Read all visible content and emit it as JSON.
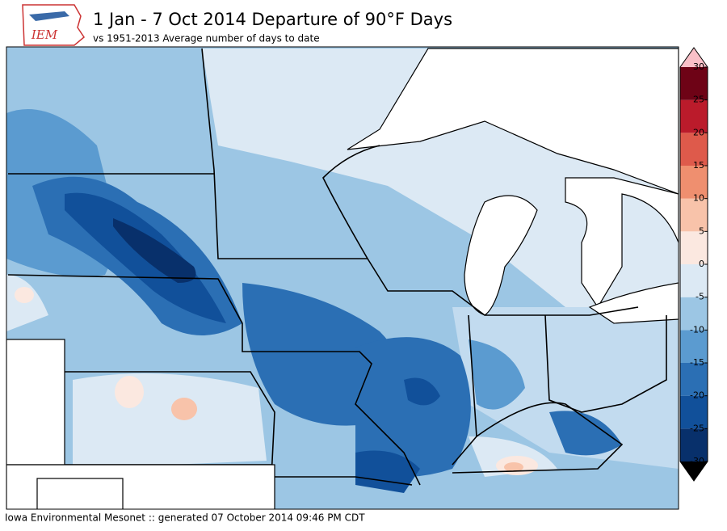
{
  "header": {
    "logo": "IEM",
    "title": "1 Jan - 7 Oct 2014 Departure of 90°F Days",
    "subtitle": "vs 1951-2013 Average number of days to date"
  },
  "footer": "Iowa Environmental Mesonet :: generated 07 October 2014 09:46 PM CDT",
  "colorbar": {
    "ticks": [
      -30,
      -25,
      -20,
      -15,
      -10,
      -5,
      0,
      5,
      10,
      15,
      20,
      25,
      30
    ],
    "colors": [
      "#08306b",
      "#11509a",
      "#2b6fb4",
      "#5b9bd0",
      "#9cc6e4",
      "#dce9f4",
      "#fbe8e0",
      "#f8c3aa",
      "#ef8f6f",
      "#de5a4b",
      "#bb1b2b",
      "#6e0316"
    ],
    "extend_colors": [
      "#000000",
      "#f9c0c8"
    ]
  }
}
